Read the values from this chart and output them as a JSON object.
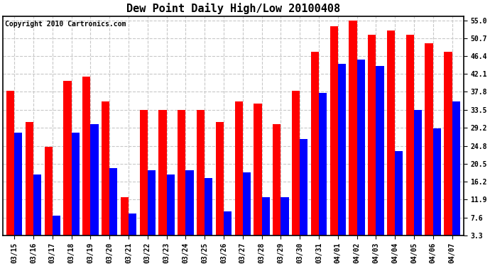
{
  "title": "Dew Point Daily High/Low 20100408",
  "copyright": "Copyright 2010 Cartronics.com",
  "categories": [
    "03/15",
    "03/16",
    "03/17",
    "03/18",
    "03/19",
    "03/20",
    "03/21",
    "03/22",
    "03/23",
    "03/24",
    "03/25",
    "03/26",
    "03/27",
    "03/28",
    "03/29",
    "03/30",
    "03/31",
    "04/01",
    "04/02",
    "04/03",
    "04/04",
    "04/05",
    "04/06",
    "04/07"
  ],
  "highs": [
    38.0,
    30.5,
    24.5,
    40.5,
    41.5,
    35.5,
    12.5,
    33.5,
    33.5,
    33.5,
    33.5,
    30.5,
    35.5,
    35.0,
    30.0,
    38.0,
    47.5,
    53.5,
    55.0,
    51.5,
    52.5,
    51.5,
    49.5,
    47.5
  ],
  "lows": [
    28.0,
    18.0,
    8.0,
    28.0,
    30.0,
    19.5,
    8.5,
    19.0,
    18.0,
    19.0,
    17.0,
    9.0,
    18.5,
    12.5,
    12.5,
    26.5,
    37.5,
    44.5,
    45.5,
    44.0,
    23.5,
    33.5,
    29.0,
    35.5
  ],
  "high_color": "#ff0000",
  "low_color": "#0000ff",
  "bg_color": "#ffffff",
  "yticks": [
    3.3,
    7.6,
    11.9,
    16.2,
    20.5,
    24.8,
    29.2,
    33.5,
    37.8,
    42.1,
    46.4,
    50.7,
    55.0
  ],
  "ymin": 3.3,
  "ymax": 55.0,
  "grid_color": "#c8c8c8",
  "bar_width": 0.42,
  "figsize": [
    6.9,
    3.75
  ],
  "dpi": 100,
  "title_fontsize": 11,
  "tick_fontsize": 7,
  "copyright_fontsize": 7
}
